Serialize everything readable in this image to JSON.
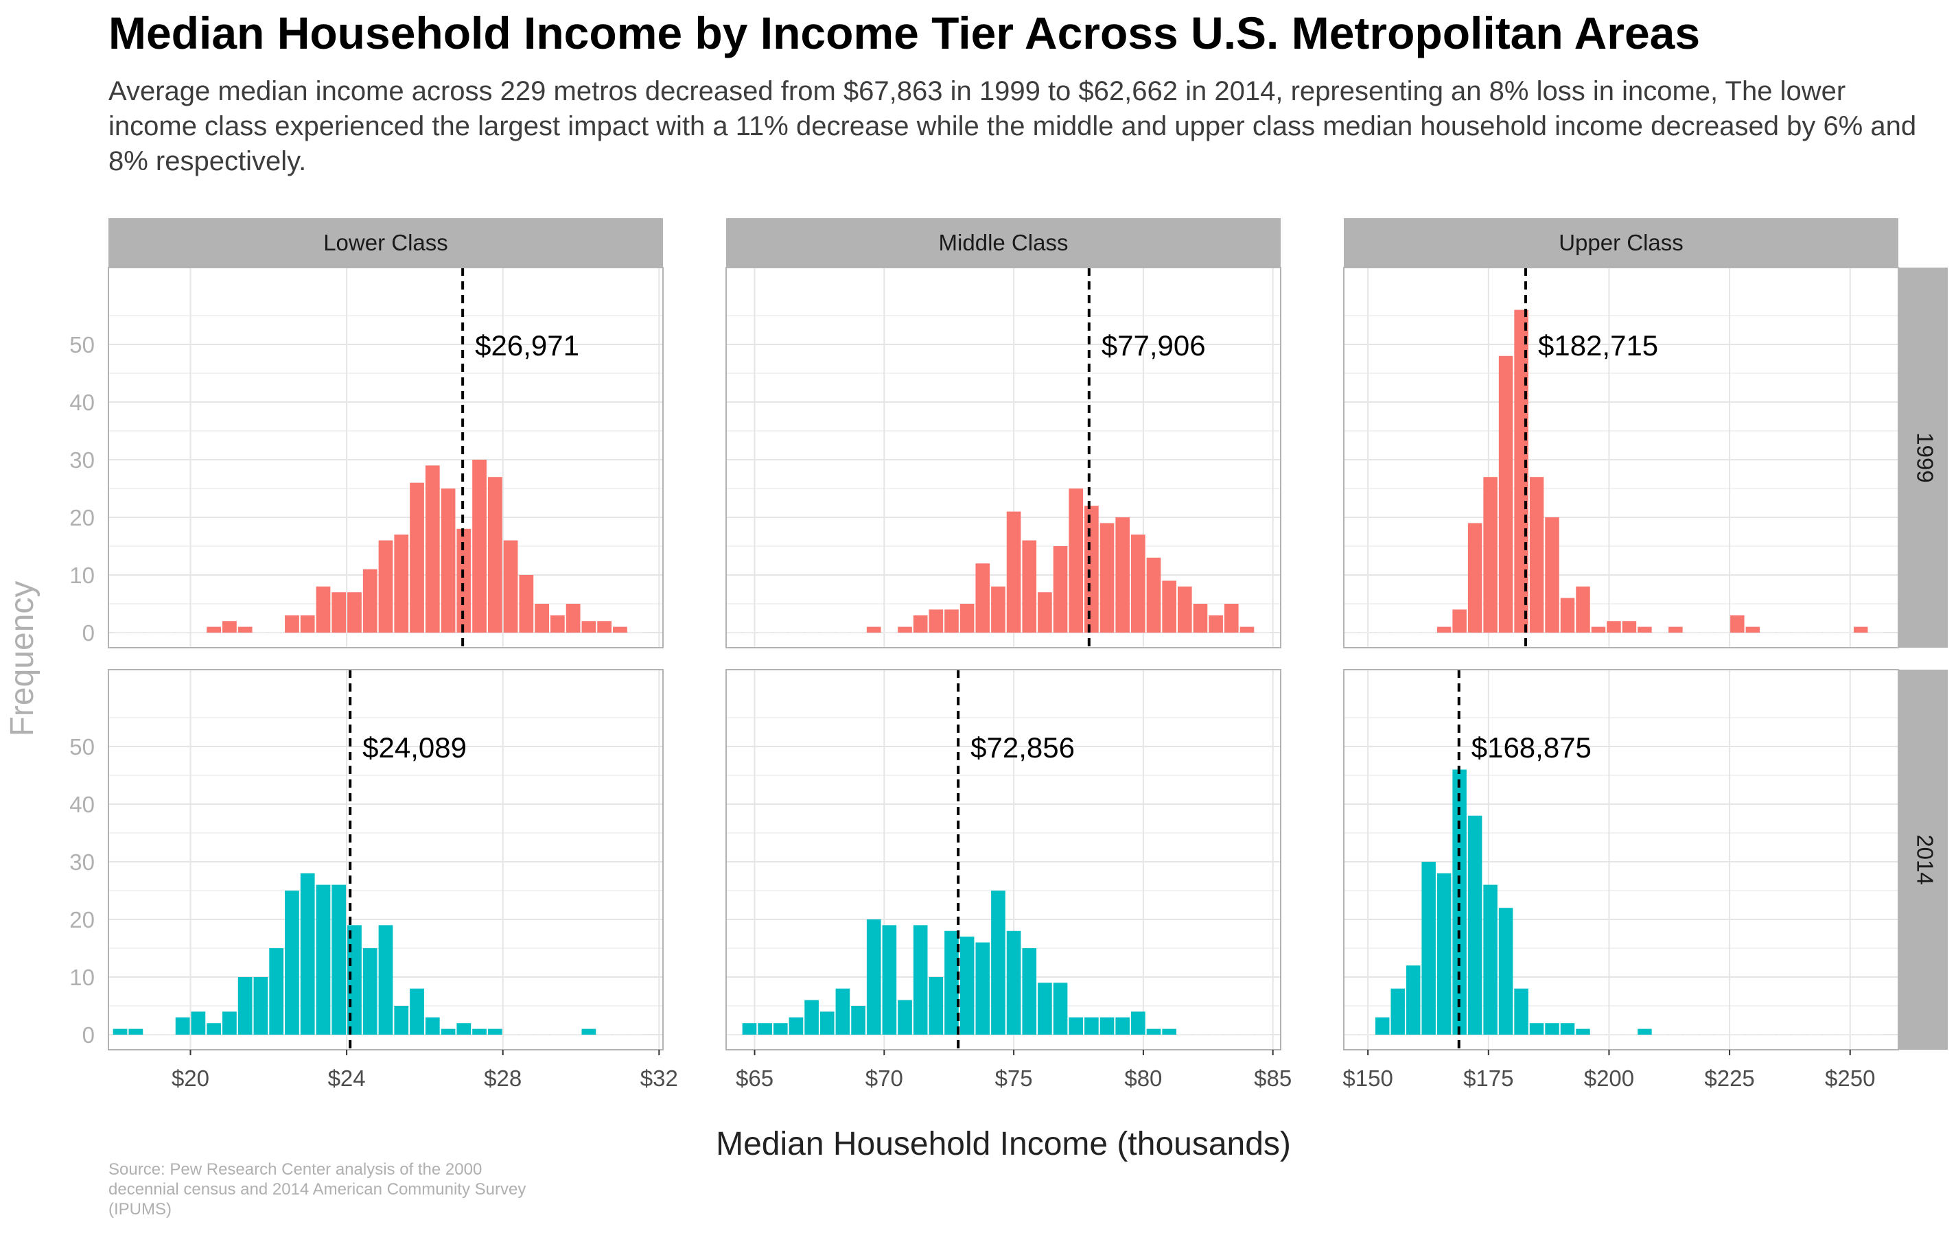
{
  "title": "Median Household Income by Income Tier Across U.S. Metropolitan Areas",
  "subtitle": "Average median income across 229 metros decreased from $67,863 in 1999 to $62,662 in 2014, representing an 8% loss in income, The lower income class experienced the largest impact with a 11% decrease while the middle and upper class median household income decreased by 6% and 8% respectively.",
  "caption": "Source: Pew Research Center analysis of the 2000 decennial census and 2014 American Community Survey (IPUMS)",
  "colors": {
    "1999": "#F8766D",
    "2014": "#00BFC4",
    "strip": "#B3B3B3",
    "grid": "#E5E5E5",
    "axis_text": "#B0B0B0"
  },
  "chart_data": {
    "type": "bar",
    "subtype": "faceted histogram",
    "xlabel": "Median Household Income (thousands)",
    "ylabel": "Frequency",
    "ylim": [
      0,
      60
    ],
    "yticks": [
      0,
      10,
      20,
      30,
      40,
      50
    ],
    "grid": true,
    "rows": [
      "1999",
      "2014"
    ],
    "columns": [
      {
        "name": "Lower Class",
        "xlim": [
          17.9,
          32.1
        ],
        "xticks": [
          20,
          24,
          28,
          32
        ],
        "xtick_labels": [
          "$20",
          "$24",
          "$28",
          "$32"
        ],
        "bin_width": 0.4,
        "panels": {
          "1999": {
            "median": 26.971,
            "median_label": "$26,971",
            "bins": [
              18.2,
              18.6,
              19.0,
              19.4,
              19.8,
              20.2,
              20.6,
              21.0,
              21.4,
              21.8,
              22.2,
              22.6,
              23.0,
              23.4,
              23.8,
              24.2,
              24.6,
              25.0,
              25.4,
              25.8,
              26.2,
              26.6,
              27.0,
              27.4,
              27.8,
              28.2,
              28.6,
              29.0,
              29.4,
              29.8,
              30.2,
              30.6,
              31.0,
              31.4
            ],
            "counts": [
              0,
              0,
              0,
              0,
              0,
              0,
              1,
              2,
              1,
              0,
              0,
              3,
              3,
              8,
              7,
              7,
              11,
              16,
              17,
              26,
              29,
              25,
              18,
              30,
              27,
              16,
              10,
              5,
              3,
              5,
              2,
              2,
              1,
              0
            ]
          },
          "2014": {
            "median": 24.089,
            "median_label": "$24,089",
            "bins": [
              18.2,
              18.6,
              19.0,
              19.4,
              19.8,
              20.2,
              20.6,
              21.0,
              21.4,
              21.8,
              22.2,
              22.6,
              23.0,
              23.4,
              23.8,
              24.2,
              24.6,
              25.0,
              25.4,
              25.8,
              26.2,
              26.6,
              27.0,
              27.4,
              27.8,
              28.2,
              28.6,
              29.0,
              29.4,
              29.8,
              30.2,
              30.6,
              31.0,
              31.4
            ],
            "counts": [
              1,
              1,
              0,
              0,
              3,
              4,
              2,
              4,
              10,
              10,
              15,
              25,
              28,
              26,
              26,
              19,
              15,
              19,
              5,
              8,
              3,
              1,
              2,
              1,
              1,
              0,
              0,
              0,
              0,
              0,
              1,
              0,
              0,
              0
            ]
          }
        }
      },
      {
        "name": "Middle Class",
        "xlim": [
          63.9,
          85.3
        ],
        "xticks": [
          65,
          70,
          75,
          80,
          85
        ],
        "xtick_labels": [
          "$65",
          "$70",
          "$75",
          "$80",
          "$85"
        ],
        "bin_width": 0.6,
        "panels": {
          "1999": {
            "median": 77.906,
            "median_label": "$77,906",
            "bins": [
              64.2,
              64.8,
              65.4,
              66.0,
              66.6,
              67.2,
              67.8,
              68.4,
              69.0,
              69.6,
              70.2,
              70.8,
              71.4,
              72.0,
              72.6,
              73.2,
              73.8,
              74.4,
              75.0,
              75.6,
              76.2,
              76.8,
              77.4,
              78.0,
              78.6,
              79.2,
              79.8,
              80.4,
              81.0,
              81.6,
              82.2,
              82.8,
              83.4,
              84.0,
              84.6
            ],
            "counts": [
              0,
              0,
              0,
              0,
              0,
              0,
              0,
              0,
              0,
              1,
              0,
              1,
              3,
              4,
              4,
              5,
              12,
              8,
              21,
              16,
              7,
              15,
              25,
              22,
              19,
              20,
              17,
              13,
              9,
              8,
              5,
              3,
              5,
              1,
              0
            ]
          },
          "2014": {
            "median": 72.856,
            "median_label": "$72,856",
            "bins": [
              64.2,
              64.8,
              65.4,
              66.0,
              66.6,
              67.2,
              67.8,
              68.4,
              69.0,
              69.6,
              70.2,
              70.8,
              71.4,
              72.0,
              72.6,
              73.2,
              73.8,
              74.4,
              75.0,
              75.6,
              76.2,
              76.8,
              77.4,
              78.0,
              78.6,
              79.2,
              79.8,
              80.4,
              81.0,
              81.6,
              82.2,
              82.8,
              83.4,
              84.0,
              84.6
            ],
            "counts": [
              0,
              2,
              2,
              2,
              3,
              6,
              4,
              8,
              5,
              20,
              19,
              6,
              19,
              10,
              18,
              17,
              16,
              25,
              18,
              15,
              9,
              9,
              3,
              3,
              3,
              3,
              4,
              1,
              1,
              0,
              0,
              0,
              0,
              0,
              0
            ]
          }
        }
      },
      {
        "name": "Upper Class",
        "xlim": [
          145,
          260
        ],
        "xticks": [
          150,
          175,
          200,
          225,
          250
        ],
        "xtick_labels": [
          "$150",
          "$175",
          "$200",
          "$225",
          "$250"
        ],
        "bin_width": 3.2,
        "panels": {
          "1999": {
            "median": 182.715,
            "median_label": "$182,715",
            "bins": [
              146.6,
              149.8,
              153.0,
              156.2,
              159.4,
              162.6,
              165.8,
              169.0,
              172.2,
              175.4,
              178.6,
              181.8,
              185.0,
              188.2,
              191.4,
              194.6,
              197.8,
              201.0,
              204.2,
              207.4,
              210.6,
              213.8,
              217.0,
              220.2,
              223.4,
              226.6,
              229.8,
              233.0,
              236.2,
              239.4,
              242.6,
              245.8,
              249.0,
              252.2,
              255.4
            ],
            "counts": [
              0,
              0,
              0,
              0,
              0,
              0,
              1,
              4,
              19,
              27,
              48,
              56,
              27,
              20,
              6,
              8,
              1,
              2,
              2,
              1,
              0,
              1,
              0,
              0,
              0,
              3,
              1,
              0,
              0,
              0,
              0,
              0,
              0,
              1,
              0
            ]
          },
          "2014": {
            "median": 168.875,
            "median_label": "$168,875",
            "bins": [
              146.6,
              149.8,
              153.0,
              156.2,
              159.4,
              162.6,
              165.8,
              169.0,
              172.2,
              175.4,
              178.6,
              181.8,
              185.0,
              188.2,
              191.4,
              194.6,
              197.8,
              201.0,
              204.2,
              207.4,
              210.6,
              213.8,
              217.0,
              220.2,
              223.4,
              226.6,
              229.8,
              233.0,
              236.2,
              239.4,
              242.6,
              245.8,
              249.0,
              252.2,
              255.4
            ],
            "counts": [
              0,
              0,
              3,
              8,
              12,
              30,
              28,
              46,
              38,
              26,
              22,
              8,
              2,
              2,
              2,
              1,
              0,
              0,
              0,
              1,
              0,
              0,
              0,
              0,
              0,
              0,
              0,
              0,
              0,
              0,
              0,
              0,
              0,
              0,
              0
            ]
          }
        }
      }
    ]
  }
}
